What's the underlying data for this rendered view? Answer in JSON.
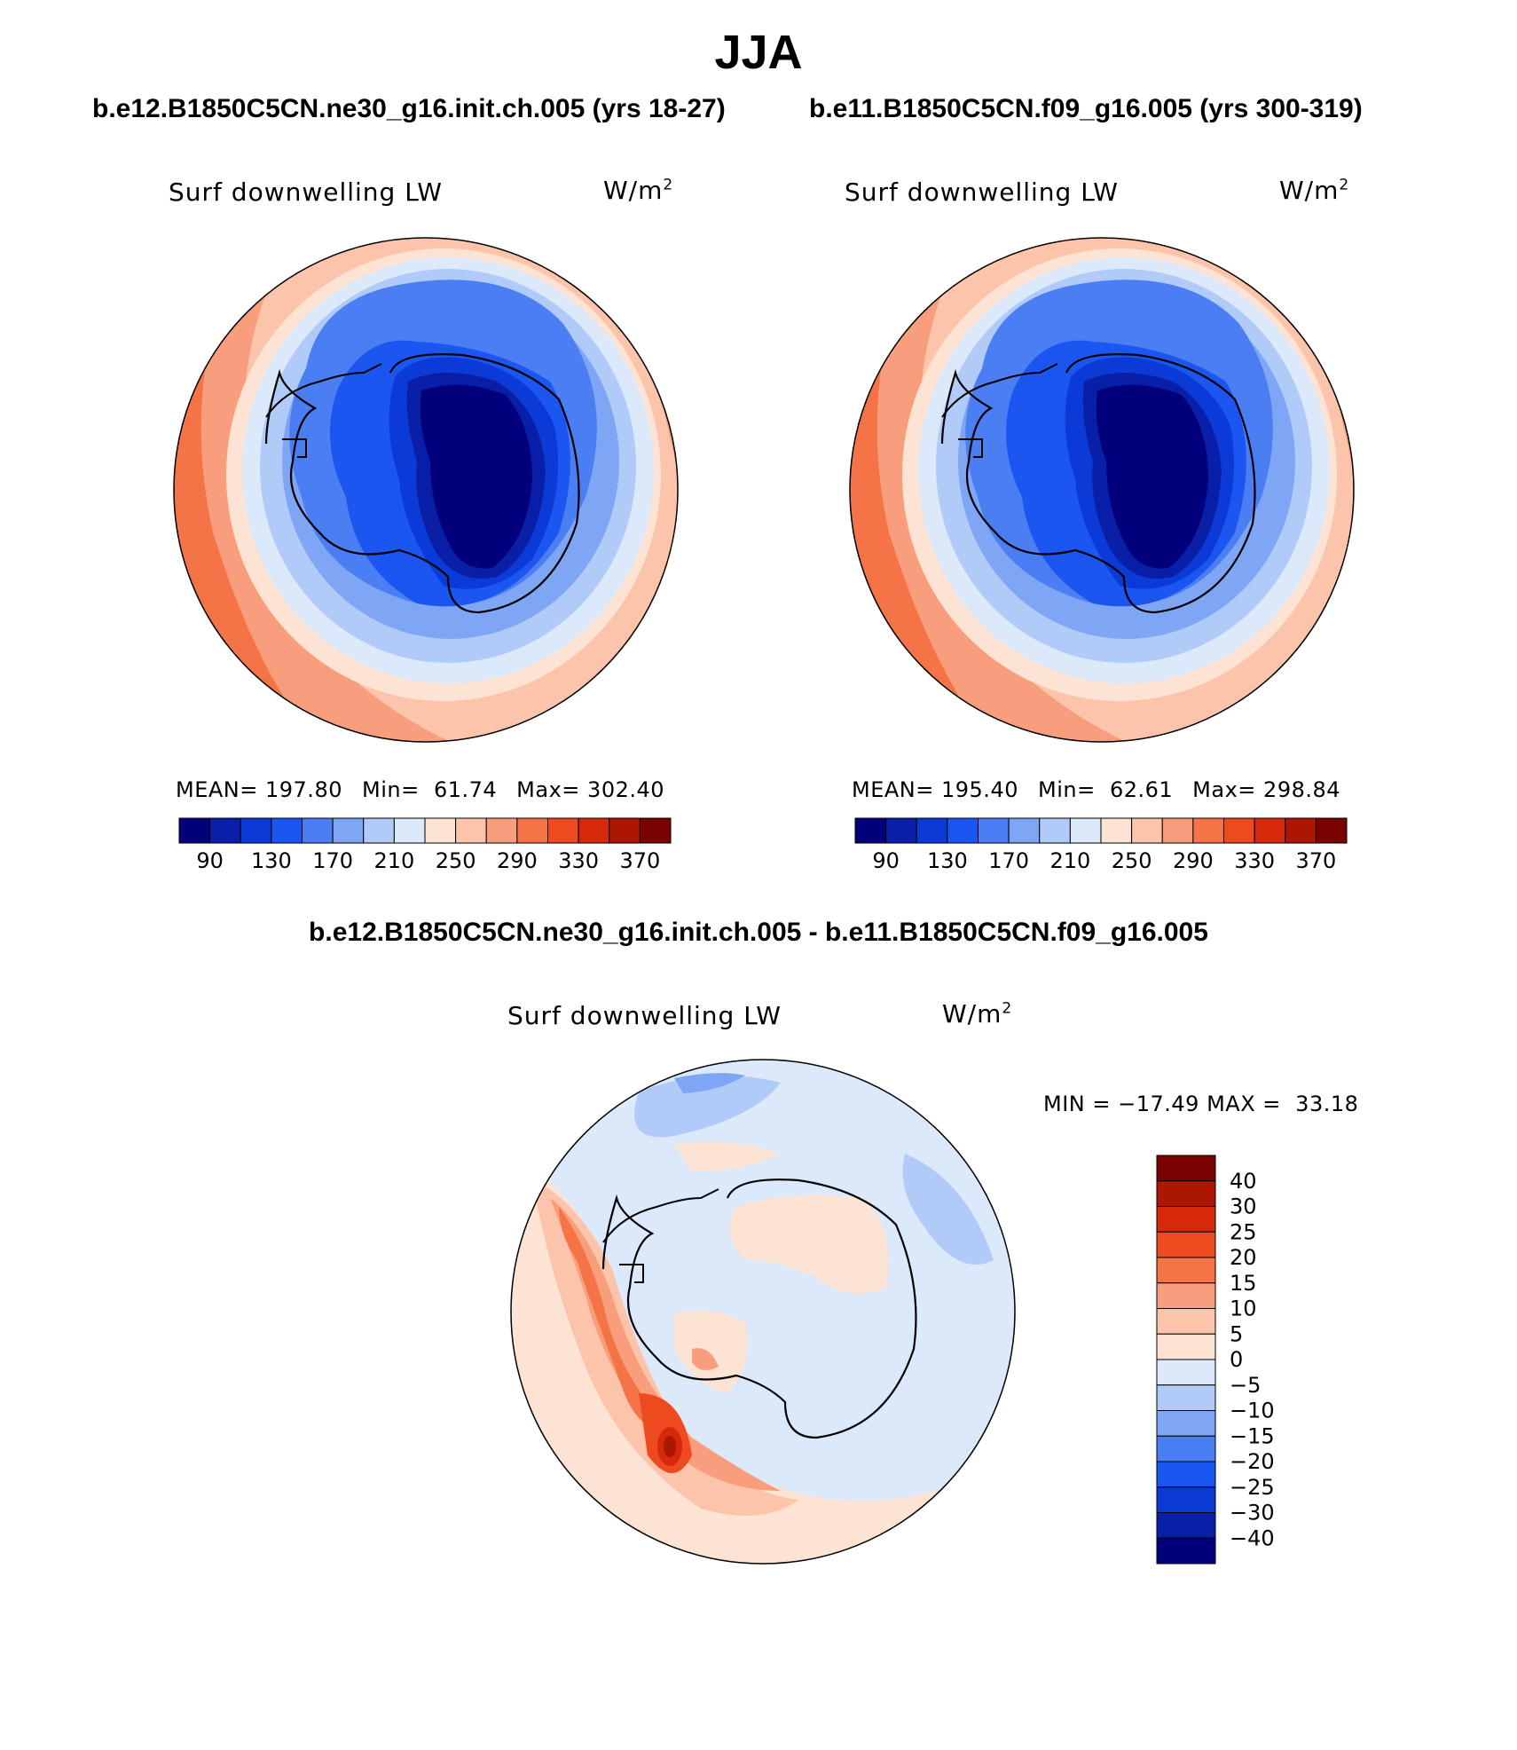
{
  "title": "JJA",
  "panels": [
    {
      "case_title": "b.e12.B1850C5CN.ne30_g16.init.ch.005 (yrs 18-27)",
      "var_label": "Surf downwelling LW",
      "units_base": "W/m",
      "units_exp": "2",
      "mean_label": "MEAN=",
      "mean": "197.80",
      "min_label": "Min=",
      "min": "61.74",
      "max_label": "Max=",
      "max": "302.40"
    },
    {
      "case_title": "b.e11.B1850C5CN.f09_g16.005 (yrs 300-319)",
      "var_label": "Surf downwelling LW",
      "units_base": "W/m",
      "units_exp": "2",
      "mean_label": "MEAN=",
      "mean": "195.40",
      "min_label": "Min=",
      "min": "62.61",
      "max_label": "Max=",
      "max": "298.84"
    }
  ],
  "diff": {
    "title": "b.e12.B1850C5CN.ne30_g16.init.ch.005 - b.e11.B1850C5CN.f09_g16.005",
    "var_label": "Surf downwelling LW",
    "units_base": "W/m",
    "units_exp": "2",
    "min_label": "MIN =",
    "min": "−17.49",
    "max_label": "MAX =",
    "max": "33.18"
  },
  "colorbar_abs": {
    "colors": [
      "#02007a",
      "#0a1fa8",
      "#0b3ad6",
      "#1b56f0",
      "#4a7ef2",
      "#7ea6f5",
      "#b1cbf8",
      "#dce9fb",
      "#fde3d4",
      "#fcc4aa",
      "#f99e7c",
      "#f47447",
      "#ee4a20",
      "#d6280a",
      "#ac1603",
      "#7c0202"
    ],
    "ticks": [
      "90",
      "130",
      "170",
      "210",
      "250",
      "290",
      "330",
      "370"
    ]
  },
  "colorbar_diff": {
    "colors": [
      "#7c0202",
      "#ac1603",
      "#d6280a",
      "#ee4a20",
      "#f47447",
      "#f99e7c",
      "#fcc4aa",
      "#fde3d4",
      "#dce9fb",
      "#b1cbf8",
      "#7ea6f5",
      "#4a7ef2",
      "#1b56f0",
      "#0b3ad6",
      "#0a1fa8",
      "#02007a"
    ],
    "ticks": [
      "40",
      "30",
      "25",
      "20",
      "15",
      "10",
      "5",
      "0",
      "−5",
      "−10",
      "−15",
      "−20",
      "−25",
      "−30",
      "−40"
    ]
  }
}
